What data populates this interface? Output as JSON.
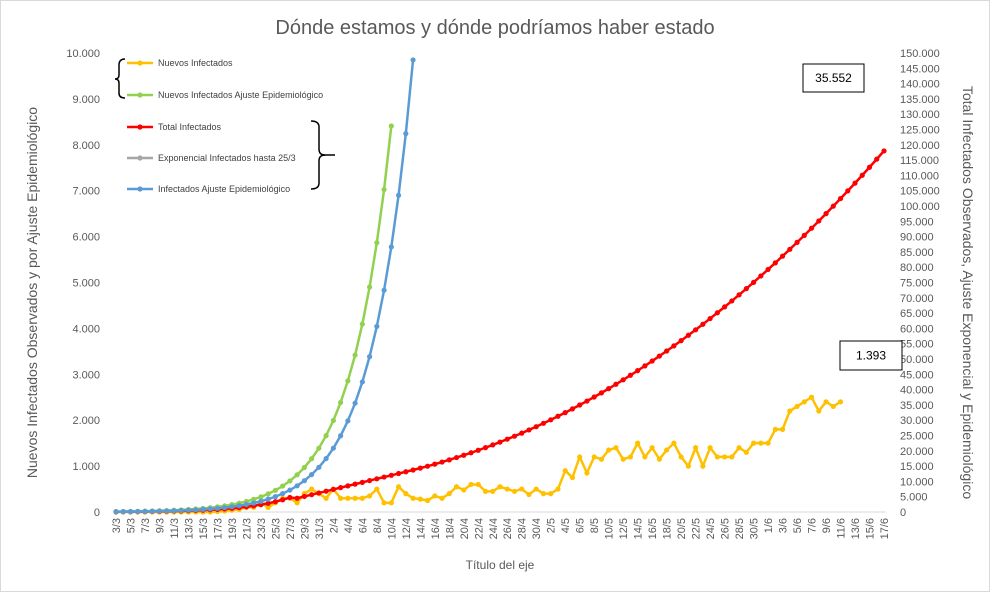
{
  "chart_data": {
    "type": "line",
    "title": "Dónde estamos y dónde podríamos haber estado",
    "xlabel": "Título del eje",
    "ylabel_left": "Nuevos Infectados Observados y por Ajuste Epidemiológico",
    "ylabel_right": "Total Infectados Observados, Ajuste Exponencial y Epidemiológico",
    "y_left_lim": [
      0,
      10000
    ],
    "y_left_ticks": [
      "0",
      "1.000",
      "2.000",
      "3.000",
      "4.000",
      "5.000",
      "6.000",
      "7.000",
      "8.000",
      "9.000",
      "10.000"
    ],
    "y_right_lim": [
      0,
      150000
    ],
    "y_right_ticks": [
      "0",
      "5.000",
      "10.000",
      "15.000",
      "20.000",
      "25.000",
      "30.000",
      "35.000",
      "40.000",
      "45.000",
      "50.000",
      "55.000",
      "60.000",
      "65.000",
      "70.000",
      "75.000",
      "80.000",
      "85.000",
      "90.000",
      "95.000",
      "100.000",
      "105.000",
      "110.000",
      "115.000",
      "120.000",
      "125.000",
      "130.000",
      "135.000",
      "140.000",
      "145.000",
      "150.000"
    ],
    "x_start_date": "3/3",
    "x_ticks": [
      "3/3",
      "5/3",
      "7/3",
      "9/3",
      "11/3",
      "13/3",
      "15/3",
      "17/3",
      "19/3",
      "21/3",
      "23/3",
      "25/3",
      "27/3",
      "29/3",
      "31/3",
      "2/4",
      "4/4",
      "6/4",
      "8/4",
      "10/4",
      "12/4",
      "14/4",
      "16/4",
      "18/4",
      "20/4",
      "22/4",
      "24/4",
      "26/4",
      "28/4",
      "30/4",
      "2/5",
      "4/5",
      "6/5",
      "8/5",
      "10/5",
      "12/5",
      "14/5",
      "16/5",
      "18/5",
      "20/5",
      "22/5",
      "24/5",
      "26/5",
      "28/5",
      "30/5",
      "1/6",
      "3/6",
      "5/6",
      "7/6",
      "9/6",
      "11/6",
      "13/6",
      "15/6",
      "17/6"
    ],
    "grid": false,
    "legend": [
      {
        "name": "Nuevos Infectados",
        "color": "#ffc000"
      },
      {
        "name": "Nuevos Infectados Ajuste Epidemiológico",
        "color": "#92d050"
      },
      {
        "name": "Total Infectados",
        "color": "#ff0000"
      },
      {
        "name": "Exponencial Infectados hasta 25/3",
        "color": "#a6a6a6"
      },
      {
        "name": "Infectados Ajuste Epidemiológico",
        "color": "#5b9bd5"
      }
    ],
    "annotations": [
      "35.552",
      "1.393"
    ],
    "series": [
      {
        "name": "Nuevos Infectados",
        "axis": "left",
        "color": "#ffc000",
        "values": [
          0,
          0,
          0,
          0,
          0,
          0,
          0,
          0,
          0,
          0,
          0,
          0,
          0,
          0,
          10,
          20,
          40,
          60,
          100,
          100,
          200,
          100,
          200,
          300,
          300,
          200,
          400,
          500,
          400,
          300,
          500,
          300,
          300,
          300,
          300,
          350,
          500,
          200,
          200,
          550,
          400,
          300,
          280,
          250,
          350,
          300,
          400,
          550,
          480,
          600,
          600,
          450,
          450,
          550,
          500,
          450,
          500,
          380,
          500,
          400,
          400,
          500,
          900,
          750,
          1200,
          850,
          1200,
          1150,
          1350,
          1400,
          1150,
          1200,
          1500,
          1200,
          1400,
          1150,
          1350,
          1500,
          1200,
          1000,
          1400,
          1000,
          1400,
          1200,
          1200,
          1200,
          1400,
          1300,
          1500,
          1500,
          1500,
          1800,
          1800,
          2200,
          2300,
          2400,
          2500,
          2200,
          2400,
          2300,
          2400
        ]
      }
    ]
  }
}
